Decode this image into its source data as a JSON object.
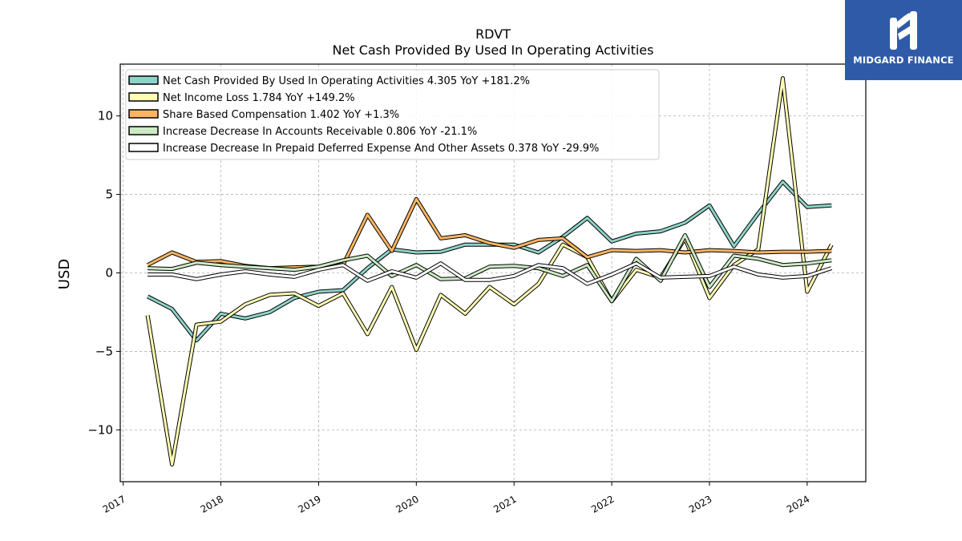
{
  "brand": {
    "name": "MIDGARD FINANCE",
    "color": "#2f5aa8"
  },
  "chart_data": {
    "type": "line",
    "title": "RDVT",
    "subtitle": "Net Cash Provided By Used In Operating Activities",
    "ylabel": "USD",
    "xlabel": "",
    "ylim": [
      -13.3,
      13.3
    ],
    "xlim": [
      2016.97,
      2024.6
    ],
    "yticks": [
      -10,
      -5,
      0,
      5,
      10
    ],
    "xticks": [
      2017,
      2018,
      2019,
      2020,
      2021,
      2022,
      2023,
      2024
    ],
    "grid": true,
    "legend_position": "top-left",
    "x": [
      2017.25,
      2017.5,
      2017.75,
      2018.0,
      2018.25,
      2018.5,
      2018.75,
      2019.0,
      2019.25,
      2019.5,
      2019.75,
      2020.0,
      2020.25,
      2020.5,
      2020.75,
      2021.0,
      2021.25,
      2021.5,
      2021.75,
      2022.0,
      2022.25,
      2022.5,
      2022.75,
      2023.0,
      2023.25,
      2023.5,
      2023.75,
      2024.0,
      2024.25
    ],
    "series": [
      {
        "name": "Net Cash Provided By Used In Operating Activities",
        "label": "Net Cash Provided By Used In Operating Activities  4.305 YoY +181.2%",
        "color": "#8dd3c7",
        "values": [
          -1.5,
          -2.3,
          -4.3,
          -2.6,
          -2.9,
          -2.5,
          -1.6,
          -1.2,
          -1.1,
          0.3,
          1.5,
          1.3,
          1.35,
          1.8,
          1.8,
          1.8,
          1.3,
          2.3,
          3.5,
          2.0,
          2.5,
          2.65,
          3.2,
          4.3,
          1.7,
          3.8,
          5.8,
          4.2,
          4.3
        ]
      },
      {
        "name": "Net Income Loss",
        "label": "Net Income Loss  1.784 YoY +149.2%",
        "color": "#ffffb3",
        "values": [
          -2.7,
          -12.2,
          -3.3,
          -3.1,
          -2.0,
          -1.4,
          -1.3,
          -2.1,
          -1.3,
          -3.9,
          -0.9,
          -4.9,
          -1.4,
          -2.6,
          -0.9,
          -2.0,
          -0.7,
          1.8,
          1.0,
          -1.8,
          0.2,
          -0.3,
          2.2,
          -1.6,
          0.5,
          1.5,
          12.4,
          -1.2,
          1.8
        ]
      },
      {
        "name": "Share Based Compensation",
        "label": "Share Based Compensation  1.402 YoY +1.3%",
        "color": "#fdb462",
        "values": [
          0.5,
          1.3,
          0.7,
          0.75,
          0.45,
          0.3,
          0.35,
          0.4,
          0.5,
          3.7,
          1.4,
          4.7,
          2.2,
          2.4,
          1.9,
          1.6,
          2.1,
          2.2,
          1.0,
          1.45,
          1.4,
          1.45,
          1.3,
          1.45,
          1.4,
          1.3,
          1.35,
          1.35,
          1.4
        ]
      },
      {
        "name": "Increase Decrease In Accounts Receivable",
        "label": "Increase Decrease In Accounts Receivable  0.806 YoY -21.1%",
        "color": "#ccebc5",
        "values": [
          0.3,
          0.25,
          0.65,
          0.5,
          0.4,
          0.3,
          0.2,
          0.4,
          0.8,
          1.1,
          -0.2,
          0.5,
          -0.4,
          -0.35,
          0.4,
          0.45,
          0.3,
          -0.2,
          0.5,
          -1.8,
          0.9,
          -0.5,
          2.4,
          -0.9,
          1.1,
          0.9,
          0.5,
          0.6,
          0.8
        ]
      },
      {
        "name": "Increase Decrease In Prepaid Deferred Expense And Other Assets",
        "label": "Increase Decrease In Prepaid Deferred Expense And Other Assets  0.378 YoY -29.9%",
        "color": "#ffffff",
        "values": [
          -0.1,
          -0.1,
          -0.4,
          -0.1,
          0.1,
          -0.1,
          -0.25,
          0.2,
          0.5,
          -0.5,
          0.1,
          -0.3,
          0.6,
          -0.45,
          -0.45,
          -0.2,
          0.5,
          0.3,
          -0.7,
          -0.1,
          0.6,
          -0.3,
          -0.25,
          -0.2,
          0.4,
          -0.1,
          -0.3,
          -0.2,
          0.3
        ]
      }
    ]
  }
}
